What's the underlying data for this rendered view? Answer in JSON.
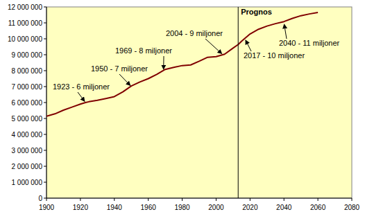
{
  "chart_data": {
    "type": "line",
    "color": "#800000",
    "x": [
      1900,
      1905,
      1910,
      1915,
      1920,
      1923,
      1925,
      1930,
      1935,
      1940,
      1945,
      1950,
      1955,
      1960,
      1965,
      1970,
      1975,
      1980,
      1985,
      1990,
      1995,
      2000,
      2005,
      2010,
      2013,
      2015,
      2020,
      2025,
      2030,
      2035,
      2040,
      2045,
      2050,
      2055,
      2060
    ],
    "values": [
      5140000,
      5290000,
      5520000,
      5710000,
      5900000,
      6000000,
      6050000,
      6140000,
      6250000,
      6370000,
      6670000,
      7040000,
      7290000,
      7500000,
      7770000,
      8080000,
      8210000,
      8320000,
      8360000,
      8590000,
      8840000,
      8880000,
      9030000,
      9420000,
      9640000,
      9850000,
      10300000,
      10600000,
      10800000,
      10950000,
      11080000,
      11280000,
      11450000,
      11560000,
      11650000
    ],
    "xlim": [
      1900,
      2080
    ],
    "xticks": [
      1900,
      1920,
      1940,
      1960,
      1980,
      2000,
      2020,
      2040,
      2060,
      2080
    ],
    "ylim": [
      0,
      12000000
    ],
    "yticks": [
      0,
      {
        "value": 1000000,
        "label": "1 000 000"
      },
      {
        "value": 2000000,
        "label": "2 000 000"
      },
      {
        "value": 3000000,
        "label": "3 000 000"
      },
      {
        "value": 4000000,
        "label": "4 000 000"
      },
      {
        "value": 5000000,
        "label": "5 000 000"
      },
      {
        "value": 6000000,
        "label": "6 000 000"
      },
      {
        "value": 7000000,
        "label": "7 000 000"
      },
      {
        "value": 8000000,
        "label": "8 000 000"
      },
      {
        "value": 9000000,
        "label": "9 000 000"
      },
      {
        "value": 10000000,
        "label": "10 000 000"
      },
      {
        "value": 11000000,
        "label": "11 000 000"
      },
      {
        "value": 12000000,
        "label": "12 000 000"
      }
    ],
    "grid": false,
    "annotations": [
      {
        "text": "Prognos",
        "x": 2013
      },
      {
        "text": "1923 - 6 miljoner",
        "x": 1923,
        "y": 6000000
      },
      {
        "text": "1950 - 7 miljoner",
        "x": 1950,
        "y": 7000000
      },
      {
        "text": "1969 - 8 miljoner",
        "x": 1969,
        "y": 8000000
      },
      {
        "text": "2004 - 9 miljoner",
        "x": 2004,
        "y": 9000000
      },
      {
        "text": "2017 - 10 miljoner",
        "x": 2017,
        "y": 10000000
      },
      {
        "text": "2040 - 11 miljoner",
        "x": 2040,
        "y": 11000000
      }
    ]
  }
}
